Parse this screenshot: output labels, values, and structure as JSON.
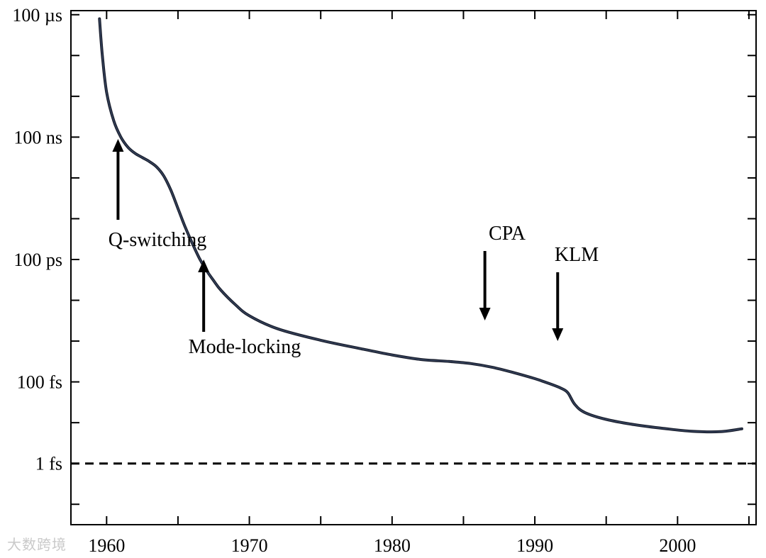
{
  "chart_data": {
    "type": "line",
    "title": "",
    "xlabel": "",
    "ylabel": "",
    "xlim": [
      1957.5,
      2005.5
    ],
    "x_ticks": [
      1960,
      1970,
      1980,
      1990,
      2000
    ],
    "y_scale": "log",
    "ylim_log10_seconds": [
      -16.5,
      -3.9
    ],
    "y_tick_labels": [
      {
        "label": "100 µs",
        "log10_seconds": -4
      },
      {
        "label": "100 ns",
        "log10_seconds": -7
      },
      {
        "label": "100 ps",
        "log10_seconds": -10
      },
      {
        "label": "100 fs",
        "log10_seconds": -13
      },
      {
        "label": "1 fs",
        "log10_seconds": -15
      }
    ],
    "reference_line": {
      "label": "1 fs",
      "log10_seconds": -15,
      "style": "dashed"
    },
    "series": [
      {
        "x": [
          1959.5,
          1959.7,
          1960.0,
          1960.5,
          1961.0,
          1961.5,
          1962.0,
          1962.5,
          1963.0,
          1963.5,
          1964.0,
          1964.5,
          1965.0,
          1965.5,
          1966.0,
          1966.5,
          1967.0,
          1967.5,
          1968.0,
          1969.0,
          1970.0,
          1972.0,
          1975.0,
          1978.0,
          1980.0,
          1982.0,
          1984.0,
          1985.5,
          1987.0,
          1988.5,
          1990.0,
          1991.0,
          1991.8,
          1992.3,
          1992.8,
          1993.5,
          1995.0,
          1997.0,
          1999.0,
          2001.0,
          2003.0,
          2004.5
        ],
        "log10_seconds": [
          -4.1,
          -5.0,
          -5.9,
          -6.6,
          -7.0,
          -7.25,
          -7.4,
          -7.5,
          -7.6,
          -7.73,
          -7.95,
          -8.3,
          -8.75,
          -9.2,
          -9.6,
          -9.97,
          -10.27,
          -10.52,
          -10.75,
          -11.1,
          -11.38,
          -11.7,
          -11.98,
          -12.2,
          -12.34,
          -12.45,
          -12.5,
          -12.55,
          -12.64,
          -12.77,
          -12.92,
          -13.04,
          -13.15,
          -13.26,
          -13.55,
          -13.75,
          -13.92,
          -14.05,
          -14.14,
          -14.21,
          -14.22,
          -14.15
        ]
      }
    ],
    "annotations": [
      {
        "text": "Q-switching",
        "arrow_direction": "up",
        "x": 1960.8
      },
      {
        "text": "Mode-locking",
        "arrow_direction": "up",
        "x": 1966.8
      },
      {
        "text": "CPA",
        "arrow_direction": "down",
        "x": 1986.5
      },
      {
        "text": "KLM",
        "arrow_direction": "down",
        "x": 1991.6
      }
    ],
    "grid": false,
    "legend": "none"
  },
  "watermark": "大数跨境"
}
